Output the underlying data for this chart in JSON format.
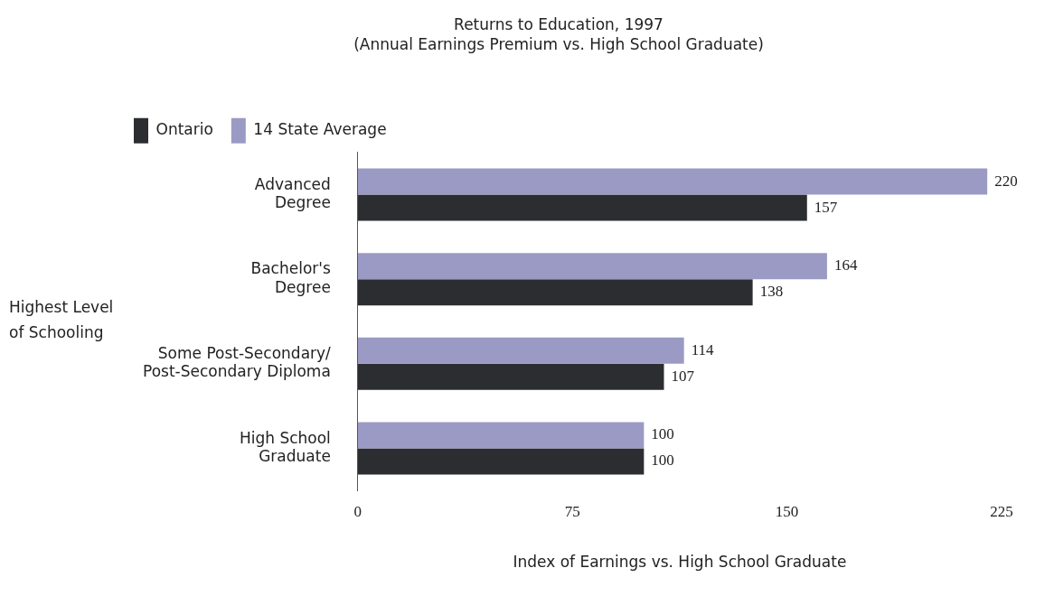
{
  "chart_data": {
    "type": "bar",
    "orientation": "horizontal",
    "title": "Returns to Education, 1997",
    "subtitle": "(Annual Earnings Premium vs. High School Graduate)",
    "xlabel": "Index of Earnings vs. High School Graduate",
    "ylabel": "Highest Level\nof Schooling",
    "categories": [
      "Advanced\nDegree",
      "Bachelor's\nDegree",
      "Some Post-Secondary/\nPost-Secondary Diploma",
      "High School\nGraduate"
    ],
    "series": [
      {
        "name": "Ontario",
        "color": "#2b2d30",
        "values": [
          157,
          138,
          107,
          100
        ]
      },
      {
        "name": "14 State Average",
        "color": "#9a9ac4",
        "values": [
          220,
          164,
          114,
          100
        ]
      }
    ],
    "xlim": [
      0,
      225
    ],
    "xticks": [
      0,
      75,
      150,
      225
    ],
    "grid": false,
    "legend": "top left",
    "data_labels": true
  }
}
